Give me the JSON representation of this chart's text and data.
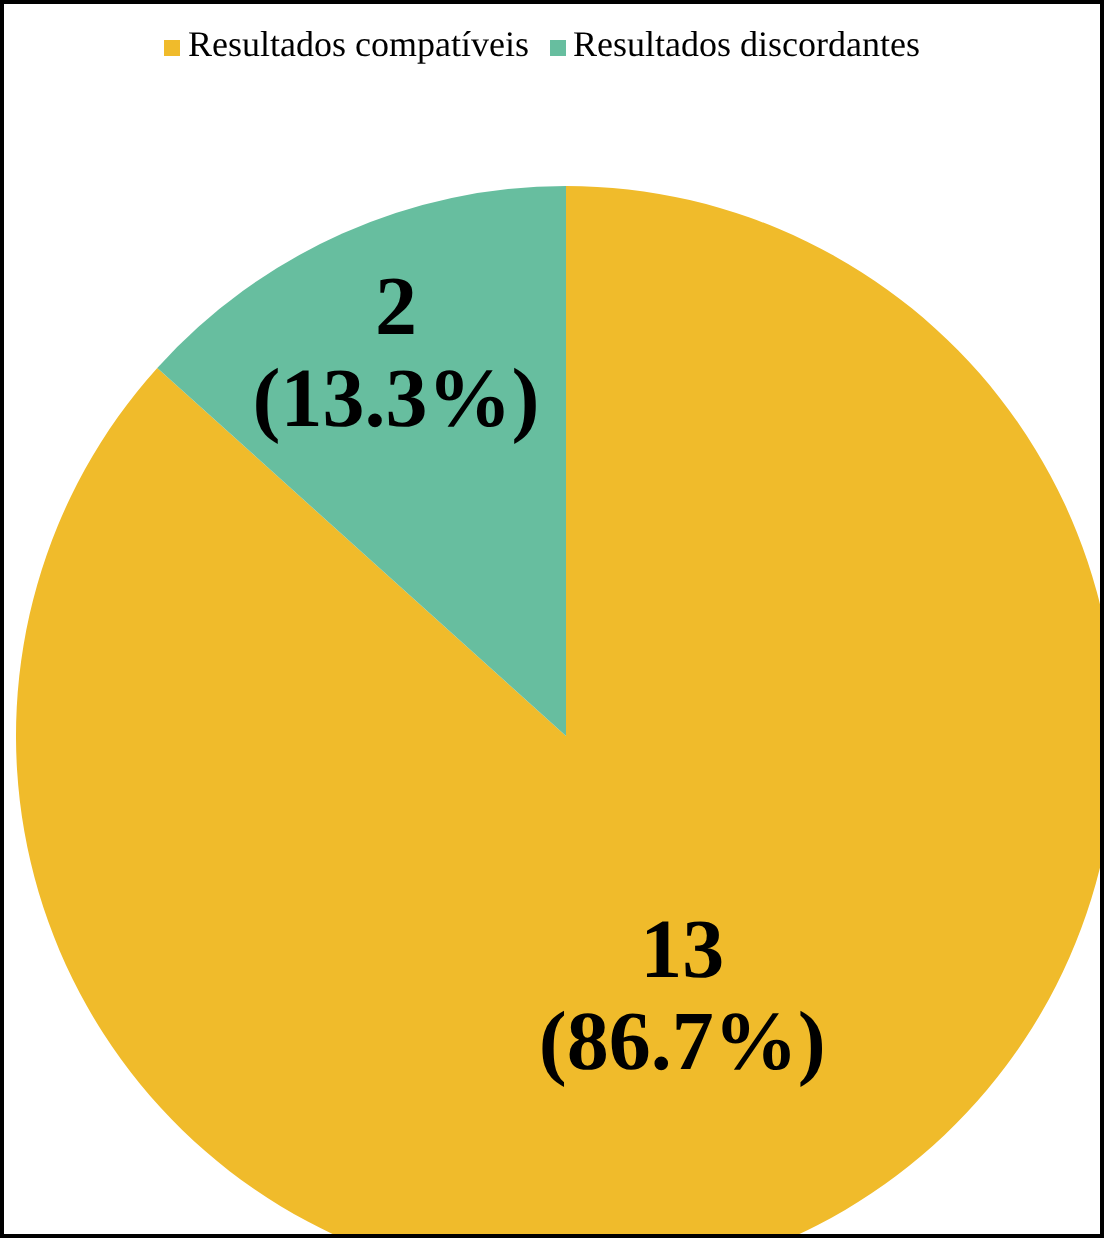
{
  "chart_data": {
    "type": "pie",
    "categories": [
      "Resultados compatíveis",
      "Resultados discordantes"
    ],
    "values": [
      13,
      2
    ],
    "colors": [
      "#f0bb2b",
      "#67be9f"
    ],
    "value_labels": [
      "13 (86.7%)",
      "2 (13.3%)"
    ],
    "legend": "top"
  }
}
